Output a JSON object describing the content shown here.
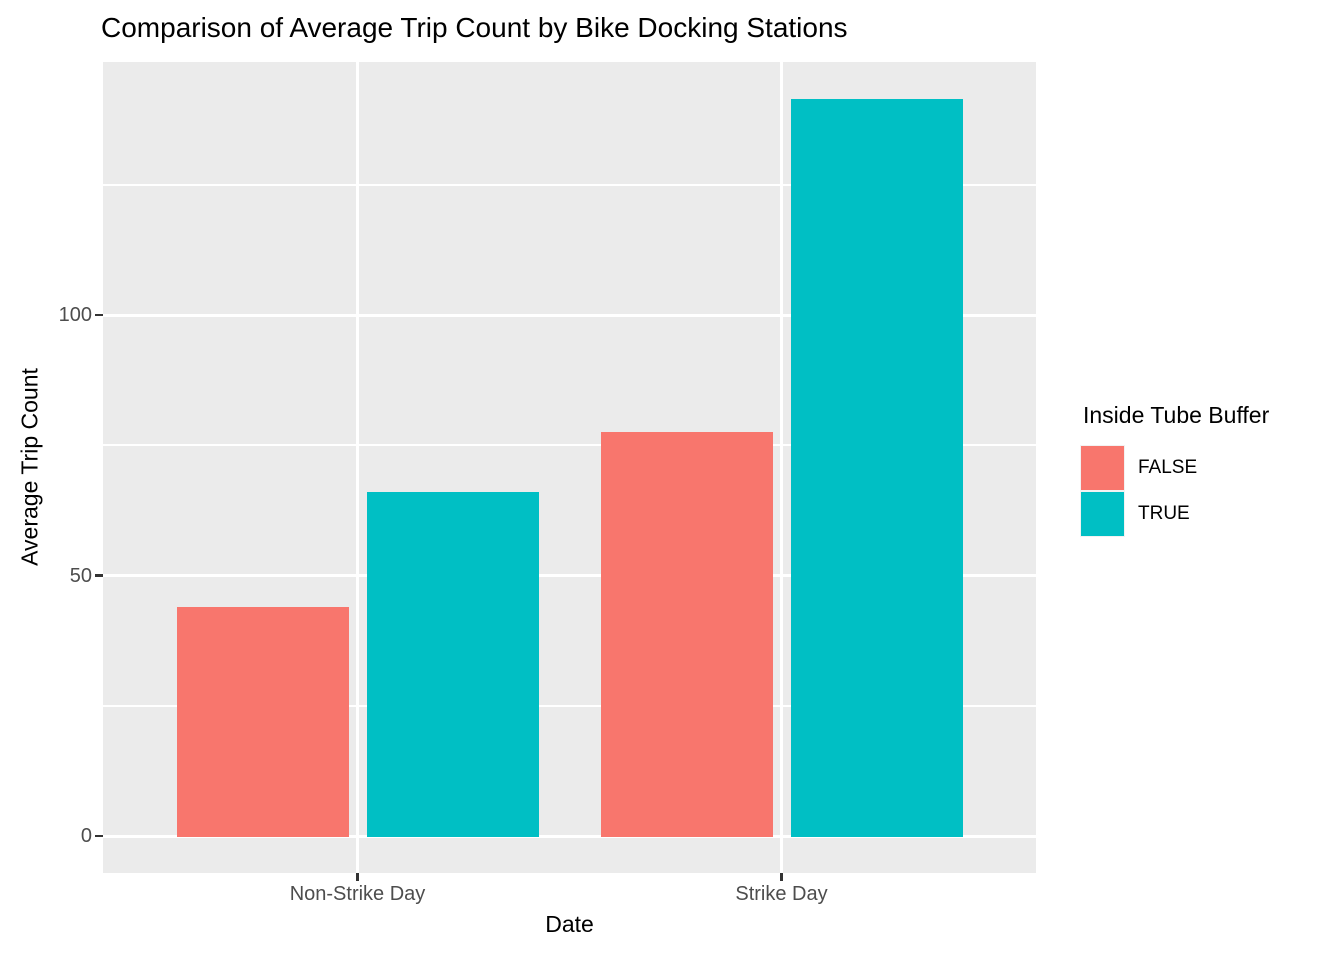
{
  "chart_data": {
    "type": "bar",
    "title": "Comparison of Average Trip Count by Bike Docking Stations",
    "xlabel": "Date",
    "ylabel": "Average Trip Count",
    "categories": [
      "Non-Strike Day",
      "Strike Day"
    ],
    "series": [
      {
        "name": "FALSE",
        "color": "#F8766D",
        "values": [
          44,
          77.5
        ]
      },
      {
        "name": "TRUE",
        "color": "#00BFC4",
        "values": [
          66,
          141.5
        ]
      }
    ],
    "legend": {
      "title": "Inside Tube Buffer",
      "position": "right",
      "labels": [
        "FALSE",
        "TRUE"
      ]
    },
    "y_axis": {
      "ticks": [
        0,
        50,
        100
      ],
      "minor_ticks": [
        25,
        75,
        125
      ],
      "range": [
        -7.1,
        148.6
      ]
    },
    "grid": "on",
    "colors": {
      "panel_bg": "#EBEBEB",
      "grid": "#FFFFFF",
      "tick_text": "#4D4D4D",
      "title_text": "#000000"
    }
  }
}
